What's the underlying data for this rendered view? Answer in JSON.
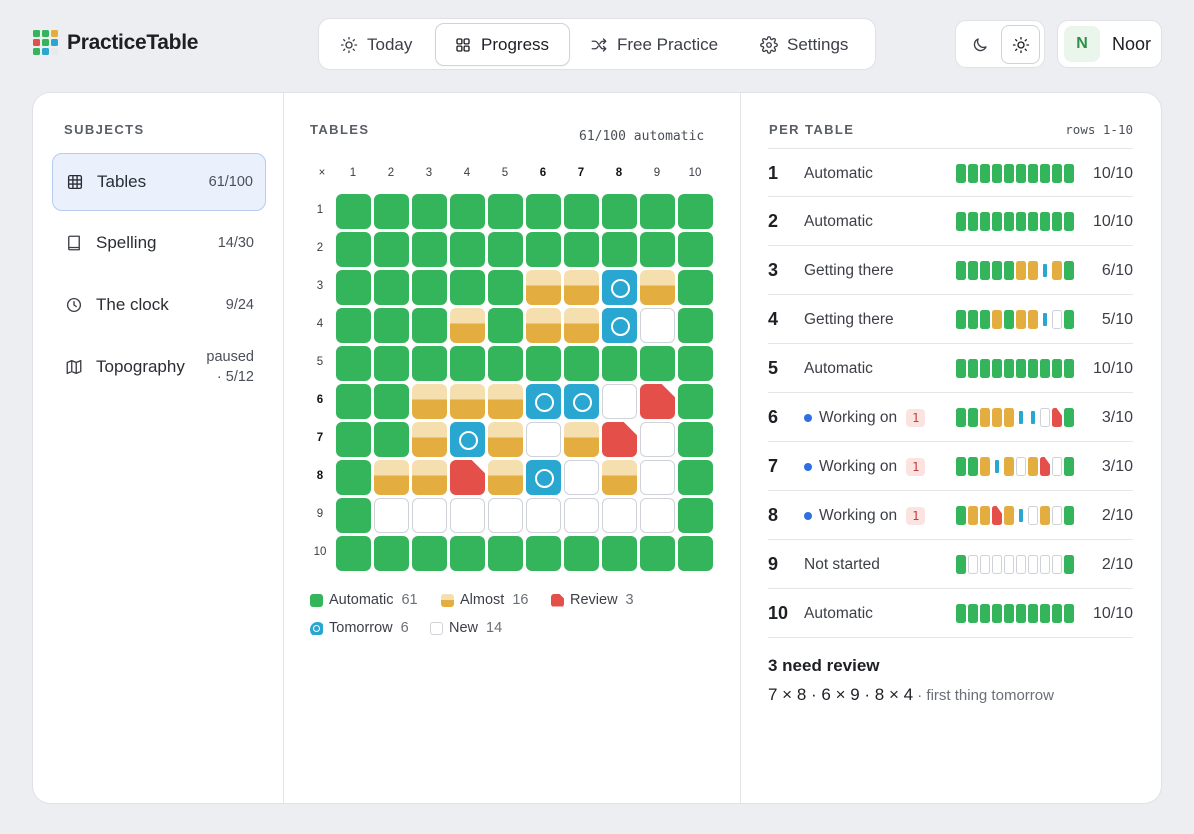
{
  "app": {
    "name": "PracticeTable",
    "logo_colors": [
      "#34b55b",
      "#34b55b",
      "#e4ad3f",
      "#e44f4a",
      "#34b55b",
      "#2aa7d1",
      "#34b55b",
      "#2aa7d1",
      "#e7e9ed"
    ]
  },
  "nav": {
    "tabs": [
      {
        "label": "Today",
        "icon": "sun-icon"
      },
      {
        "label": "Progress",
        "icon": "grid-icon",
        "active": true
      },
      {
        "label": "Free Practice",
        "icon": "shuffle-icon"
      },
      {
        "label": "Settings",
        "icon": "gear-icon"
      }
    ]
  },
  "theme": {
    "dark_icon": "moon-icon",
    "light_icon": "sun-icon",
    "active": "light"
  },
  "user": {
    "initial": "N",
    "name": "Noor"
  },
  "subjects": {
    "label": "SUBJECTS",
    "items": [
      {
        "name": "Tables",
        "count": "61/100",
        "icon": "table-icon",
        "active": true
      },
      {
        "name": "Spelling",
        "count": "14/30",
        "icon": "book-icon"
      },
      {
        "name": "The clock",
        "count": "9/24",
        "icon": "clock-icon"
      },
      {
        "name": "Topography",
        "count": "paused\n· 5/12",
        "icon": "map-icon"
      }
    ]
  },
  "tables": {
    "label": "TABLES",
    "summary": "61/100 automatic",
    "corner": "×",
    "cols": [
      "1",
      "2",
      "3",
      "4",
      "5",
      "6",
      "7",
      "8",
      "9",
      "10"
    ],
    "rows": [
      "1",
      "2",
      "3",
      "4",
      "5",
      "6",
      "7",
      "8",
      "9",
      "10"
    ],
    "bold_headers": [
      "6",
      "7",
      "8"
    ],
    "grid": [
      [
        "A",
        "A",
        "A",
        "A",
        "A",
        "A",
        "A",
        "A",
        "A",
        "A"
      ],
      [
        "A",
        "A",
        "A",
        "A",
        "A",
        "A",
        "A",
        "A",
        "A",
        "A"
      ],
      [
        "A",
        "A",
        "A",
        "A",
        "A",
        "M",
        "M",
        "T",
        "M",
        "A"
      ],
      [
        "A",
        "A",
        "A",
        "M",
        "A",
        "M",
        "M",
        "T",
        "N",
        "A"
      ],
      [
        "A",
        "A",
        "A",
        "A",
        "A",
        "A",
        "A",
        "A",
        "A",
        "A"
      ],
      [
        "A",
        "A",
        "M",
        "M",
        "M",
        "T",
        "T",
        "N",
        "R",
        "A"
      ],
      [
        "A",
        "A",
        "M",
        "T",
        "M",
        "N",
        "M",
        "R",
        "N",
        "A"
      ],
      [
        "A",
        "M",
        "M",
        "R",
        "M",
        "T",
        "N",
        "M",
        "N",
        "A"
      ],
      [
        "A",
        "N",
        "N",
        "N",
        "N",
        "N",
        "N",
        "N",
        "N",
        "A"
      ],
      [
        "A",
        "A",
        "A",
        "A",
        "A",
        "A",
        "A",
        "A",
        "A",
        "A"
      ]
    ],
    "legend": [
      {
        "label": "Automatic",
        "count": "61",
        "kind": "A"
      },
      {
        "label": "Almost",
        "count": "16",
        "kind": "M"
      },
      {
        "label": "Review",
        "count": "3",
        "kind": "R"
      },
      {
        "label": "Tomorrow",
        "count": "6",
        "kind": "T"
      },
      {
        "label": "New",
        "count": "14",
        "kind": "N"
      }
    ],
    "colors": {
      "automatic": "#34b55b",
      "almost": "#e4ad3f",
      "review": "#e44f4a",
      "tomorrow": "#2aa7d1",
      "new": "#ffffff"
    }
  },
  "per_table": {
    "label": "PER TABLE",
    "range": "rows 1-10",
    "rows": [
      {
        "num": "1",
        "status": "Automatic",
        "frac": "10/10",
        "bar": "AAAAAAAAAA"
      },
      {
        "num": "2",
        "status": "Automatic",
        "frac": "10/10",
        "bar": "AAAAAAAAAA"
      },
      {
        "num": "3",
        "status": "Getting there",
        "frac": "6/10",
        "bar": "AAAAAMMTMA"
      },
      {
        "num": "4",
        "status": "Getting there",
        "frac": "5/10",
        "bar": "AAAMAMMTNA"
      },
      {
        "num": "5",
        "status": "Automatic",
        "frac": "10/10",
        "bar": "AAAAAAAAAA"
      },
      {
        "num": "6",
        "status": "Working on",
        "badge": "1",
        "working": true,
        "frac": "3/10",
        "bar": "AAMMMTTNRA"
      },
      {
        "num": "7",
        "status": "Working on",
        "badge": "1",
        "working": true,
        "frac": "3/10",
        "bar": "AAMTMNMRNA"
      },
      {
        "num": "8",
        "status": "Working on",
        "badge": "1",
        "working": true,
        "frac": "2/10",
        "bar": "AMMRMTNMNA"
      },
      {
        "num": "9",
        "status": "Not started",
        "frac": "2/10",
        "bar": "ANNNNNNNNA"
      },
      {
        "num": "10",
        "status": "Automatic",
        "frac": "10/10",
        "bar": "AAAAAAAAAA"
      }
    ]
  },
  "review": {
    "title": "3 need review",
    "items": "7 × 8 · 6 × 9 · 8 × 4",
    "note": " · first thing tomorrow"
  }
}
